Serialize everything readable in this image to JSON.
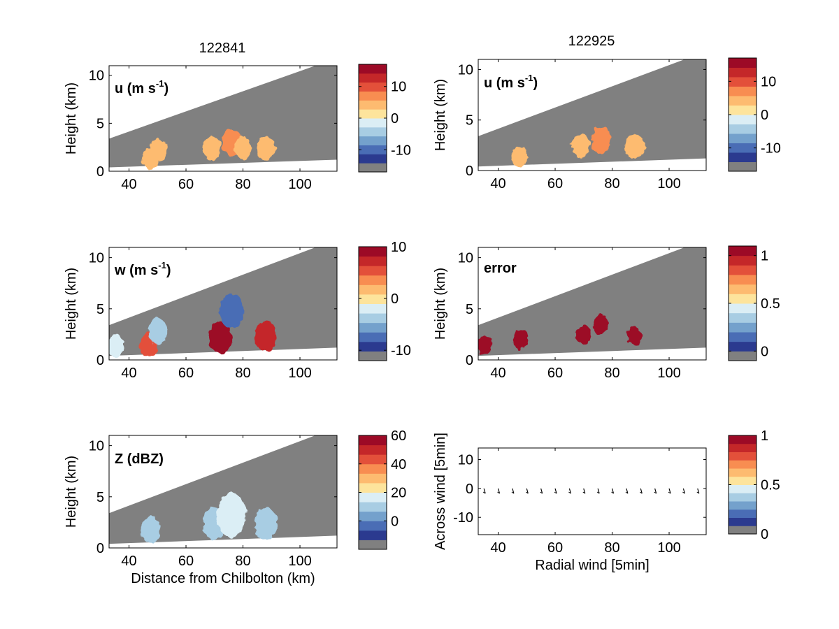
{
  "colors": {
    "diverging": [
      "#808080",
      "#2b3a8f",
      "#4a6db5",
      "#74a1cc",
      "#a8cde3",
      "#dbeef5",
      "#fde49c",
      "#fdbb70",
      "#f88d51",
      "#e3503a",
      "#c42729",
      "#9c0a26"
    ],
    "mask": "#808080",
    "axis": "#000000"
  },
  "columns": [
    "122841",
    "122925"
  ],
  "shared_axes": {
    "x_ticks": [
      "40",
      "60",
      "80",
      "100"
    ],
    "y_ticks": [
      "0",
      "5",
      "10"
    ],
    "ylabel": "Height (km)"
  },
  "chart_data": [
    {
      "id": "u-left",
      "type": "heatmap",
      "title": "122841",
      "label": "u (m s",
      "label_sup": "-1",
      "label_tail": ")",
      "xlabel": "",
      "ylabel": "Height (km)",
      "xlim": [
        33,
        113
      ],
      "ylim": [
        0,
        11
      ],
      "x_ticks": [
        40,
        60,
        80,
        100
      ],
      "y_ticks": [
        0,
        5,
        10
      ],
      "colorbar": {
        "ticks": [
          "10",
          "0",
          "-10"
        ],
        "values": [
          10,
          0,
          -10
        ],
        "range": [
          -17,
          17
        ]
      },
      "features": [
        {
          "x": 47.5,
          "y": 1.3,
          "value": 2
        },
        {
          "x": 50.5,
          "y": 2.2,
          "value": 3
        },
        {
          "x": 69,
          "y": 2.4,
          "value": 4
        },
        {
          "x": 76,
          "y": 3.0,
          "value": 5
        },
        {
          "x": 80,
          "y": 2.4,
          "value": 3
        },
        {
          "x": 88,
          "y": 2.4,
          "value": 4
        }
      ]
    },
    {
      "id": "u-right",
      "type": "heatmap",
      "title": "122925",
      "label": "u (m s",
      "label_sup": "-1",
      "label_tail": ")",
      "xlabel": "",
      "ylabel": "Height (km)",
      "xlim": [
        33,
        113
      ],
      "ylim": [
        0,
        11
      ],
      "x_ticks": [
        40,
        60,
        80,
        100
      ],
      "y_ticks": [
        0,
        5,
        10
      ],
      "colorbar": {
        "ticks": [
          "10",
          "0",
          "-10"
        ],
        "values": [
          10,
          0,
          -10
        ],
        "range": [
          -17,
          17
        ]
      },
      "features": [
        {
          "x": 47.5,
          "y": 1.3,
          "value": 2
        },
        {
          "x": 69,
          "y": 2.4,
          "value": 4
        },
        {
          "x": 76,
          "y": 3.0,
          "value": 5
        },
        {
          "x": 88,
          "y": 2.4,
          "value": 4
        }
      ]
    },
    {
      "id": "w-left",
      "type": "heatmap",
      "title": "",
      "label": "w (m s",
      "label_sup": "-1",
      "label_tail": ")",
      "xlabel": "",
      "ylabel": "Height (km)",
      "xlim": [
        33,
        113
      ],
      "ylim": [
        0,
        11
      ],
      "x_ticks": [
        40,
        60,
        80,
        100
      ],
      "y_ticks": [
        0,
        5,
        10
      ],
      "colorbar": {
        "ticks": [
          "10",
          "0",
          "-10"
        ],
        "values": [
          10,
          0,
          -10
        ],
        "range": [
          -12,
          10
        ]
      },
      "features": [
        {
          "x": 35,
          "y": 1.4,
          "value": -3
        },
        {
          "x": 47,
          "y": 1.5,
          "value": 4
        },
        {
          "x": 50,
          "y": 2.8,
          "value": -5
        },
        {
          "x": 72,
          "y": 2.2,
          "value": 8
        },
        {
          "x": 76,
          "y": 4.8,
          "value": -9
        },
        {
          "x": 88,
          "y": 2.3,
          "value": 7
        }
      ]
    },
    {
      "id": "error-right",
      "type": "heatmap",
      "title": "",
      "label": "error",
      "label_sup": "",
      "label_tail": "",
      "xlabel": "",
      "ylabel": "Height (km)",
      "xlim": [
        33,
        113
      ],
      "ylim": [
        0,
        11
      ],
      "x_ticks": [
        40,
        60,
        80,
        100
      ],
      "y_ticks": [
        0,
        5,
        10
      ],
      "colorbar": {
        "ticks": [
          "1",
          "0.5",
          "0"
        ],
        "values": [
          1,
          0.5,
          0
        ],
        "range": [
          -0.1,
          1.1
        ]
      },
      "features": [
        {
          "x": 35,
          "y": 1.4,
          "value": 1
        },
        {
          "x": 48,
          "y": 2.0,
          "value": 1
        },
        {
          "x": 70,
          "y": 2.5,
          "value": 1
        },
        {
          "x": 76,
          "y": 3.5,
          "value": 1
        },
        {
          "x": 88,
          "y": 2.3,
          "value": 1
        }
      ]
    },
    {
      "id": "z-left",
      "type": "heatmap",
      "title": "",
      "label": "Z (dBZ)",
      "label_sup": "",
      "label_tail": "",
      "xlabel": "Distance from Chilbolton (km)",
      "ylabel": "Height (km)",
      "xlim": [
        33,
        113
      ],
      "ylim": [
        0,
        11
      ],
      "x_ticks": [
        40,
        60,
        80,
        100
      ],
      "y_ticks": [
        0,
        5,
        10
      ],
      "colorbar": {
        "ticks": [
          "60",
          "40",
          "20",
          "0"
        ],
        "values": [
          60,
          40,
          20,
          0
        ],
        "range": [
          -20,
          60
        ]
      },
      "features": [
        {
          "x": 47.5,
          "y": 1.8,
          "value": 5
        },
        {
          "x": 70,
          "y": 2.4,
          "value": 8
        },
        {
          "x": 76,
          "y": 3.2,
          "value": 14
        },
        {
          "x": 88,
          "y": 2.4,
          "value": 8
        }
      ]
    },
    {
      "id": "vector-right",
      "type": "scatter",
      "title": "",
      "xlabel": "Radial wind [5min]",
      "ylabel": "Across wind [5min]",
      "xlim": [
        33,
        113
      ],
      "ylim": [
        -16,
        14
      ],
      "x_ticks": [
        40,
        60,
        80,
        100
      ],
      "y_ticks": [
        10,
        0,
        -10
      ],
      "colorbar": {
        "ticks": [
          "1",
          "0.5",
          "0"
        ],
        "values": [
          1,
          0.5,
          0
        ],
        "range": [
          0,
          1
        ]
      },
      "x": [
        35,
        40,
        45,
        50,
        55,
        60,
        65,
        70,
        75,
        80,
        85,
        90,
        95,
        100,
        105,
        110
      ],
      "y": [
        -1,
        -1,
        -1,
        -1,
        -1,
        -1,
        -1,
        -1,
        -1,
        -1,
        -1,
        -1,
        -1,
        -1,
        -1,
        -1
      ]
    }
  ]
}
